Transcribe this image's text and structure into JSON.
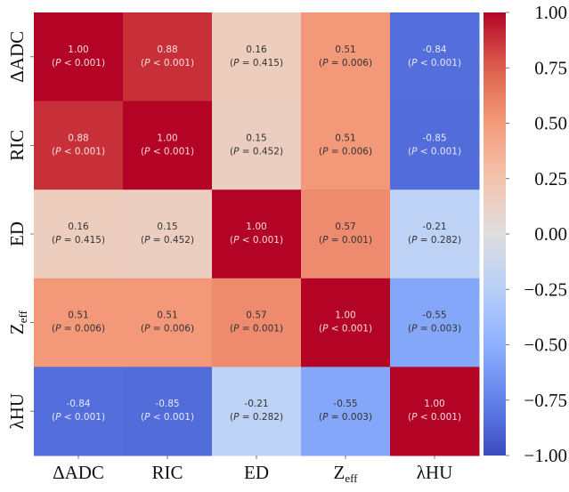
{
  "chart_data": {
    "type": "heatmap",
    "title": "",
    "colormap": "coolwarm",
    "vmin": -1.0,
    "vmax": 1.0,
    "x_labels": [
      "ΔADC",
      "RIC",
      "ED",
      "Zeff",
      "λHU"
    ],
    "y_labels": [
      "ΔADC",
      "RIC",
      "ED",
      "Zeff",
      "λHU"
    ],
    "values": [
      [
        1.0,
        0.88,
        0.16,
        0.51,
        -0.84
      ],
      [
        0.88,
        1.0,
        0.15,
        0.51,
        -0.85
      ],
      [
        0.16,
        0.15,
        1.0,
        0.57,
        -0.21
      ],
      [
        0.51,
        0.51,
        0.57,
        1.0,
        -0.55
      ],
      [
        -0.84,
        -0.85,
        -0.21,
        -0.55,
        1.0
      ]
    ],
    "p_labels": [
      [
        "(P < 0.001)",
        "(P < 0.001)",
        "(P = 0.415)",
        "(P = 0.006)",
        "(P < 0.001)"
      ],
      [
        "(P < 0.001)",
        "(P < 0.001)",
        "(P = 0.452)",
        "(P = 0.006)",
        "(P < 0.001)"
      ],
      [
        "(P = 0.415)",
        "(P = 0.452)",
        "(P < 0.001)",
        "(P = 0.001)",
        "(P = 0.282)"
      ],
      [
        "(P = 0.006)",
        "(P = 0.006)",
        "(P = 0.001)",
        "(P < 0.001)",
        "(P = 0.003)"
      ],
      [
        "(P < 0.001)",
        "(P < 0.001)",
        "(P = 0.282)",
        "(P = 0.003)",
        "(P < 0.001)"
      ]
    ],
    "colorbar_ticks": [
      1.0,
      0.75,
      0.5,
      0.25,
      0.0,
      -0.25,
      -0.5,
      -0.75,
      -1.0
    ],
    "colorbar_tick_labels": [
      "1.00",
      "0.75",
      "0.50",
      "0.25",
      "0.00",
      "−0.25",
      "−0.50",
      "−0.75",
      "−1.00"
    ],
    "legend": "colorbar-right"
  }
}
